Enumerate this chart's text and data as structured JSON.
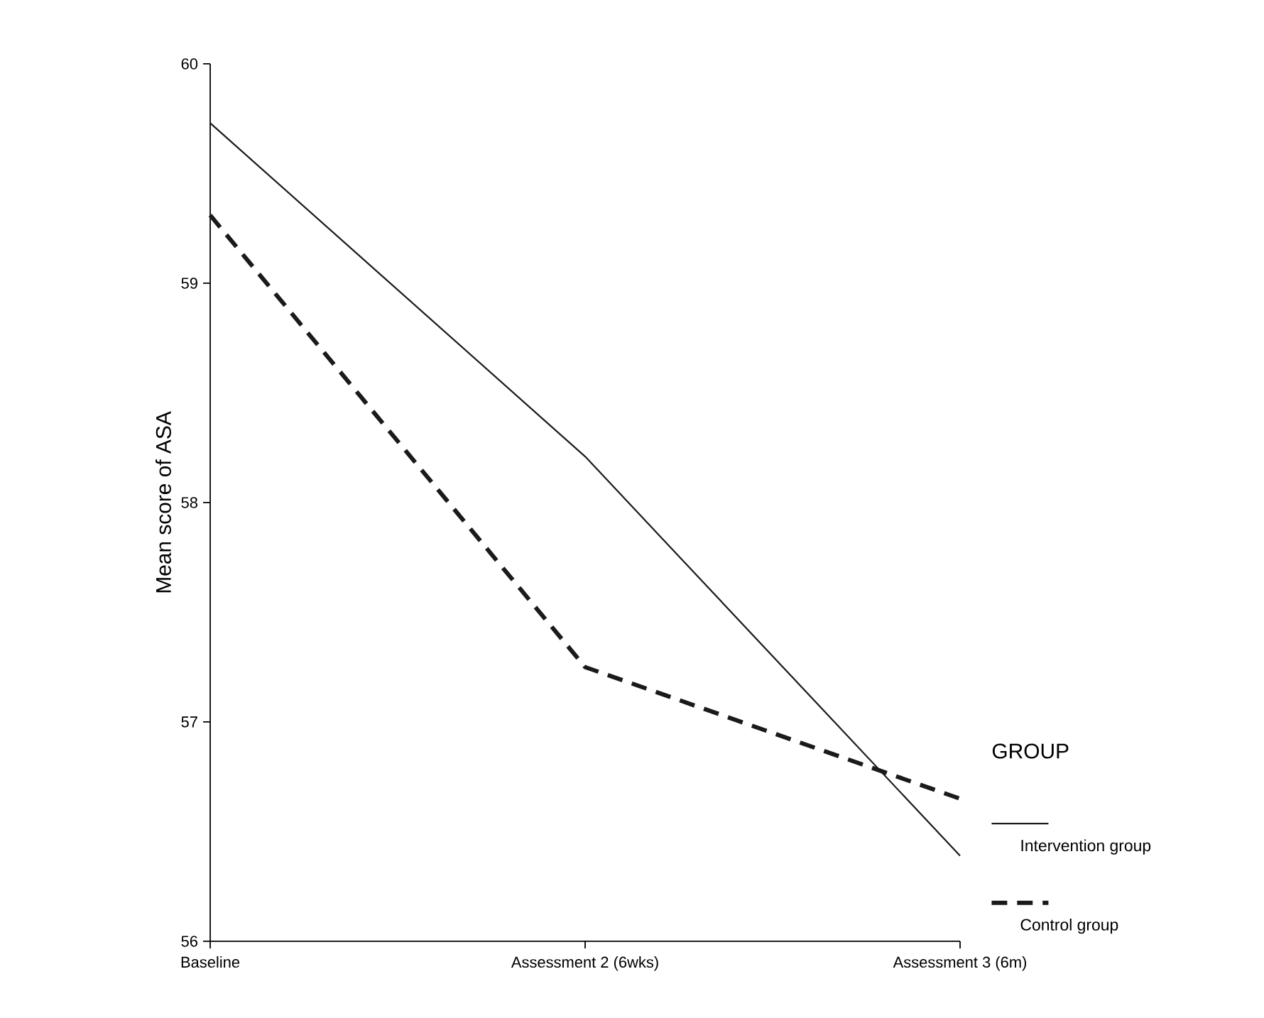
{
  "chart_data": {
    "type": "line",
    "ylabel": "Mean score of ASA",
    "legend_title": "GROUP",
    "categories": [
      "Baseline",
      "Assessment 2 (6wks)",
      "Assessment 3 (6m)"
    ],
    "series": [
      {
        "name": "Intervention group",
        "color": "#1a1a1a",
        "line_style": "solid",
        "values": [
          59.73,
          58.21,
          56.39
        ]
      },
      {
        "name": "Control group",
        "color": "#1a1a1a",
        "line_style": "dashed",
        "values": [
          59.31,
          57.25,
          56.65
        ]
      }
    ],
    "ylim": [
      56,
      60
    ],
    "yticks": [
      56,
      57,
      58,
      59,
      60
    ],
    "grid": false,
    "legend": "right",
    "marker": "none"
  }
}
